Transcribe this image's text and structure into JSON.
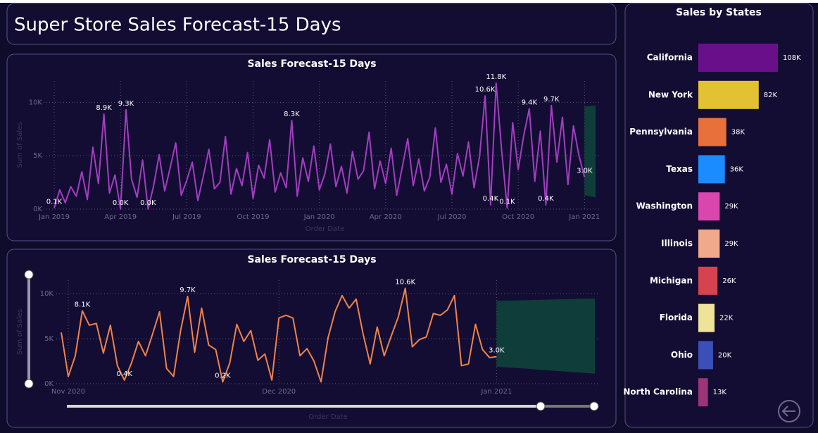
{
  "title": "Super Store Sales Forecast-15 Days",
  "chart_data": [
    {
      "type": "line",
      "title": "Sales Forecast-15 Days",
      "y_label": "Sum of Sales",
      "x_label": "Order Date",
      "color": "#a23ec0",
      "grid": true,
      "ylim": [
        0,
        12000
      ],
      "yticks": [
        {
          "value": 0,
          "label": "0K"
        },
        {
          "value": 5000,
          "label": "5K"
        },
        {
          "value": 10000,
          "label": "10K"
        }
      ],
      "categories": [
        "Jan 2019",
        null,
        null,
        null,
        null,
        null,
        null,
        null,
        null,
        null,
        null,
        null,
        "Apr 2019",
        null,
        null,
        null,
        null,
        null,
        null,
        null,
        null,
        null,
        null,
        null,
        "Jul 2019",
        null,
        null,
        null,
        null,
        null,
        null,
        null,
        null,
        null,
        null,
        null,
        "Oct 2019",
        null,
        null,
        null,
        null,
        null,
        null,
        null,
        null,
        null,
        null,
        null,
        "Jan 2020",
        null,
        null,
        null,
        null,
        null,
        null,
        null,
        null,
        null,
        null,
        null,
        "Apr 2020",
        null,
        null,
        null,
        null,
        null,
        null,
        null,
        null,
        null,
        null,
        null,
        "Jul 2020",
        null,
        null,
        null,
        null,
        null,
        null,
        null,
        null,
        null,
        null,
        null,
        "Oct 2020",
        null,
        null,
        null,
        null,
        null,
        null,
        null,
        null,
        null,
        null,
        null,
        "Jan 2021",
        null,
        null
      ],
      "values": [
        100,
        1800,
        600,
        2100,
        1200,
        3500,
        900,
        5800,
        2400,
        8900,
        1500,
        3200,
        0,
        9300,
        2800,
        1100,
        4600,
        0,
        2200,
        5100,
        1700,
        3900,
        6200,
        1300,
        2700,
        4400,
        800,
        3100,
        5600,
        1900,
        2500,
        6800,
        1400,
        3800,
        2200,
        5300,
        1000,
        4100,
        2900,
        6500,
        1600,
        3400,
        2000,
        8300,
        1200,
        4800,
        2600,
        5900,
        1800,
        3300,
        6100,
        2100,
        4000,
        1500,
        5400,
        2800,
        3600,
        7200,
        1900,
        4500,
        2400,
        5700,
        1300,
        3900,
        6600,
        2200,
        4700,
        1700,
        3000,
        7600,
        2500,
        4200,
        1400,
        5200,
        3100,
        6300,
        2000,
        4900,
        10600,
        400,
        11800,
        5500,
        100,
        8100,
        3700,
        6900,
        9400,
        2600,
        7300,
        400,
        9700,
        4400,
        8600,
        2300,
        7800,
        5000,
        3000,
        null,
        null
      ],
      "value_labels": [
        "0.1K",
        null,
        null,
        null,
        null,
        null,
        null,
        null,
        null,
        "8.9K",
        null,
        null,
        "0.0K",
        "9.3K",
        null,
        null,
        null,
        "0.0K",
        null,
        null,
        null,
        null,
        null,
        null,
        null,
        null,
        null,
        null,
        null,
        null,
        null,
        null,
        null,
        null,
        null,
        null,
        null,
        null,
        null,
        null,
        null,
        null,
        null,
        "8.3K",
        null,
        null,
        null,
        null,
        null,
        null,
        null,
        null,
        null,
        null,
        null,
        null,
        null,
        null,
        null,
        null,
        null,
        null,
        null,
        null,
        null,
        null,
        null,
        null,
        null,
        null,
        null,
        null,
        null,
        null,
        null,
        null,
        null,
        null,
        "10.6K",
        "0.4K",
        "11.8K",
        null,
        "0.1K",
        null,
        null,
        null,
        "9.4K",
        null,
        null,
        "0.4K",
        "9.7K",
        null,
        null,
        null,
        null,
        null,
        "3.0K",
        null,
        null
      ],
      "forecast": {
        "color": "#0f3d3a",
        "upper": [
          null,
          null,
          null,
          null,
          null,
          null,
          null,
          null,
          null,
          null,
          null,
          null,
          null,
          null,
          null,
          null,
          null,
          null,
          null,
          null,
          null,
          null,
          null,
          null,
          null,
          null,
          null,
          null,
          null,
          null,
          null,
          null,
          null,
          null,
          null,
          null,
          null,
          null,
          null,
          null,
          null,
          null,
          null,
          null,
          null,
          null,
          null,
          null,
          null,
          null,
          null,
          null,
          null,
          null,
          null,
          null,
          null,
          null,
          null,
          null,
          null,
          null,
          null,
          null,
          null,
          null,
          null,
          null,
          null,
          null,
          null,
          null,
          null,
          null,
          null,
          null,
          null,
          null,
          null,
          null,
          null,
          null,
          null,
          null,
          null,
          null,
          null,
          null,
          null,
          null,
          null,
          null,
          null,
          null,
          null,
          null,
          9600,
          9650,
          9700
        ],
        "lower": [
          null,
          null,
          null,
          null,
          null,
          null,
          null,
          null,
          null,
          null,
          null,
          null,
          null,
          null,
          null,
          null,
          null,
          null,
          null,
          null,
          null,
          null,
          null,
          null,
          null,
          null,
          null,
          null,
          null,
          null,
          null,
          null,
          null,
          null,
          null,
          null,
          null,
          null,
          null,
          null,
          null,
          null,
          null,
          null,
          null,
          null,
          null,
          null,
          null,
          null,
          null,
          null,
          null,
          null,
          null,
          null,
          null,
          null,
          null,
          null,
          null,
          null,
          null,
          null,
          null,
          null,
          null,
          null,
          null,
          null,
          null,
          null,
          null,
          null,
          null,
          null,
          null,
          null,
          null,
          null,
          null,
          null,
          null,
          null,
          null,
          null,
          null,
          null,
          null,
          null,
          null,
          null,
          null,
          null,
          null,
          null,
          1300,
          1200,
          1100
        ]
      }
    },
    {
      "type": "line",
      "title": "Sales Forecast-15 Days",
      "y_label": "Sum of Sales",
      "x_label": "Order Date",
      "color": "#f0824a",
      "grid": true,
      "ylim": [
        0,
        11500
      ],
      "yticks": [
        {
          "value": 0,
          "label": "0K"
        },
        {
          "value": 5000,
          "label": "5K"
        },
        {
          "value": 10000,
          "label": "10K"
        }
      ],
      "categories": [
        null,
        "Nov 2020",
        null,
        null,
        null,
        null,
        null,
        null,
        null,
        null,
        null,
        null,
        null,
        null,
        null,
        null,
        null,
        null,
        null,
        null,
        null,
        null,
        null,
        null,
        null,
        null,
        null,
        null,
        null,
        null,
        null,
        "Dec 2020",
        null,
        null,
        null,
        null,
        null,
        null,
        null,
        null,
        null,
        null,
        null,
        null,
        null,
        null,
        null,
        null,
        null,
        null,
        null,
        null,
        null,
        null,
        null,
        null,
        null,
        null,
        null,
        null,
        null,
        null,
        "Jan 2021",
        null,
        null,
        null,
        null,
        null,
        null,
        null,
        null,
        null,
        null,
        null,
        null,
        null,
        null
      ],
      "values": [
        5700,
        800,
        3100,
        8100,
        6500,
        6700,
        3400,
        6500,
        2000,
        400,
        2300,
        4700,
        3100,
        5500,
        8000,
        1700,
        800,
        5900,
        9700,
        3500,
        8400,
        4300,
        3800,
        200,
        2300,
        6600,
        4700,
        5900,
        2600,
        3300,
        400,
        7300,
        7600,
        7300,
        3100,
        3900,
        2500,
        200,
        5100,
        8000,
        9800,
        8400,
        9400,
        5500,
        2200,
        6300,
        3100,
        5300,
        7400,
        10600,
        4100,
        4900,
        5200,
        7800,
        7600,
        8200,
        9800,
        2000,
        2200,
        6600,
        3800,
        2900,
        3000,
        null,
        null,
        null,
        null,
        null,
        null,
        null,
        null,
        null,
        null,
        null,
        null,
        null,
        null
      ],
      "value_labels": [
        null,
        null,
        null,
        "8.1K",
        null,
        null,
        null,
        null,
        null,
        "0.4K",
        null,
        null,
        null,
        null,
        null,
        null,
        null,
        null,
        "9.7K",
        null,
        null,
        null,
        null,
        "0.2K",
        null,
        null,
        null,
        null,
        null,
        null,
        null,
        null,
        null,
        null,
        null,
        null,
        null,
        null,
        null,
        null,
        null,
        null,
        null,
        null,
        null,
        null,
        null,
        null,
        null,
        "10.6K",
        null,
        null,
        null,
        null,
        null,
        null,
        null,
        null,
        null,
        null,
        null,
        null,
        "3.0K",
        null,
        null,
        null,
        null,
        null,
        null,
        null,
        null,
        null,
        null,
        null,
        null,
        null,
        null
      ],
      "forecast": {
        "color": "#0f3d3a",
        "upper": [
          null,
          null,
          null,
          null,
          null,
          null,
          null,
          null,
          null,
          null,
          null,
          null,
          null,
          null,
          null,
          null,
          null,
          null,
          null,
          null,
          null,
          null,
          null,
          null,
          null,
          null,
          null,
          null,
          null,
          null,
          null,
          null,
          null,
          null,
          null,
          null,
          null,
          null,
          null,
          null,
          null,
          null,
          null,
          null,
          null,
          null,
          null,
          null,
          null,
          null,
          null,
          null,
          null,
          null,
          null,
          null,
          null,
          null,
          null,
          null,
          null,
          null,
          9200,
          9220,
          9240,
          9260,
          9280,
          9300,
          9320,
          9340,
          9360,
          9380,
          9400,
          9420,
          9440,
          9460,
          9480
        ],
        "lower": [
          null,
          null,
          null,
          null,
          null,
          null,
          null,
          null,
          null,
          null,
          null,
          null,
          null,
          null,
          null,
          null,
          null,
          null,
          null,
          null,
          null,
          null,
          null,
          null,
          null,
          null,
          null,
          null,
          null,
          null,
          null,
          null,
          null,
          null,
          null,
          null,
          null,
          null,
          null,
          null,
          null,
          null,
          null,
          null,
          null,
          null,
          null,
          null,
          null,
          null,
          null,
          null,
          null,
          null,
          null,
          null,
          null,
          null,
          null,
          null,
          null,
          null,
          1900,
          1840,
          1790,
          1730,
          1680,
          1620,
          1560,
          1510,
          1450,
          1400,
          1340,
          1280,
          1230,
          1170,
          1110
        ]
      }
    },
    {
      "type": "hbar",
      "title": "Sales by States",
      "categories": [
        "California",
        "New York",
        "Pennsylvania",
        "Texas",
        "Washington",
        "Illinois",
        "Michigan",
        "Florida",
        "Ohio",
        "North Carolina"
      ],
      "values": [
        108000,
        82000,
        38000,
        36000,
        29000,
        29000,
        26000,
        22000,
        20000,
        13000
      ],
      "value_labels": [
        "108K",
        "82K",
        "38K",
        "36K",
        "29K",
        "29K",
        "26K",
        "22K",
        "20K",
        "13K"
      ],
      "colors": [
        "#6a0f8a",
        "#e2c232",
        "#e8703a",
        "#1a8cff",
        "#d946ad",
        "#f0a98a",
        "#d6434f",
        "#efe39a",
        "#3a4fb8",
        "#9c3577"
      ]
    }
  ]
}
